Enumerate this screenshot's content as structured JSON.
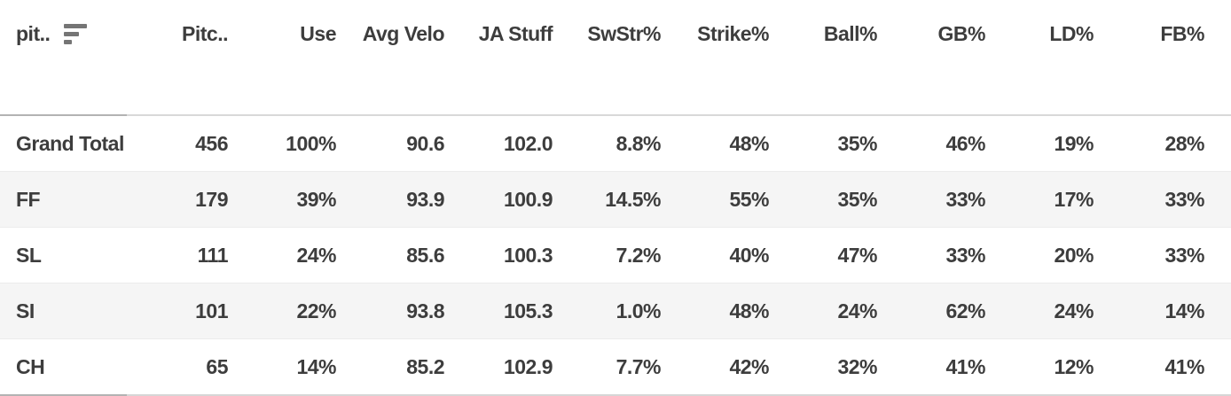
{
  "table": {
    "columns": [
      {
        "key": "pitch-type",
        "label": "pit..",
        "align": "left"
      },
      {
        "key": "pitches",
        "label": "Pitc.."
      },
      {
        "key": "use",
        "label": "Use"
      },
      {
        "key": "avg-velo",
        "label": "Avg Velo"
      },
      {
        "key": "ja-stuff",
        "label": "JA Stuff"
      },
      {
        "key": "swstr-pct",
        "label": "SwStr%"
      },
      {
        "key": "strike-pct",
        "label": "Strike%"
      },
      {
        "key": "ball-pct",
        "label": "Ball%"
      },
      {
        "key": "gb-pct",
        "label": "GB%"
      },
      {
        "key": "ld-pct",
        "label": "LD%"
      },
      {
        "key": "fb-pct",
        "label": "FB%"
      }
    ],
    "rows": [
      {
        "label": "Grand Total",
        "values": [
          "456",
          "100%",
          "90.6",
          "102.0",
          "8.8%",
          "48%",
          "35%",
          "46%",
          "19%",
          "28%"
        ]
      },
      {
        "label": "FF",
        "values": [
          "179",
          "39%",
          "93.9",
          "100.9",
          "14.5%",
          "55%",
          "35%",
          "33%",
          "17%",
          "33%"
        ]
      },
      {
        "label": "SL",
        "values": [
          "111",
          "24%",
          "85.6",
          "100.3",
          "7.2%",
          "40%",
          "47%",
          "33%",
          "20%",
          "33%"
        ]
      },
      {
        "label": "SI",
        "values": [
          "101",
          "22%",
          "93.8",
          "105.3",
          "1.0%",
          "48%",
          "24%",
          "62%",
          "24%",
          "14%"
        ]
      },
      {
        "label": "CH",
        "values": [
          "65",
          "14%",
          "85.2",
          "102.9",
          "7.7%",
          "42%",
          "32%",
          "41%",
          "12%",
          "41%"
        ]
      }
    ],
    "icons": {
      "sort_icon": "sort-descending-bars-icon"
    },
    "colors": {
      "text": "#3d3d3d",
      "icon_gray": "#757575",
      "row_alt_bg": "#f5f5f5",
      "border_strong": "#b3b3b3",
      "border_light": "#d8d8d8",
      "row_divider": "#ececec"
    }
  },
  "chart_data": {
    "type": "table",
    "title": "",
    "columns": [
      "pit..",
      "Pitc..",
      "Use",
      "Avg Velo",
      "JA Stuff",
      "SwStr%",
      "Strike%",
      "Ball%",
      "GB%",
      "LD%",
      "FB%"
    ],
    "rows": [
      [
        "Grand Total",
        456,
        "100%",
        90.6,
        102.0,
        "8.8%",
        "48%",
        "35%",
        "46%",
        "19%",
        "28%"
      ],
      [
        "FF",
        179,
        "39%",
        93.9,
        100.9,
        "14.5%",
        "55%",
        "35%",
        "33%",
        "17%",
        "33%"
      ],
      [
        "SL",
        111,
        "24%",
        85.6,
        100.3,
        "7.2%",
        "40%",
        "47%",
        "33%",
        "20%",
        "33%"
      ],
      [
        "SI",
        101,
        "22%",
        93.8,
        105.3,
        "1.0%",
        "48%",
        "24%",
        "62%",
        "24%",
        "14%"
      ],
      [
        "CH",
        65,
        "14%",
        85.2,
        102.9,
        "7.7%",
        "42%",
        "32%",
        "41%",
        "12%",
        "41%"
      ]
    ]
  }
}
